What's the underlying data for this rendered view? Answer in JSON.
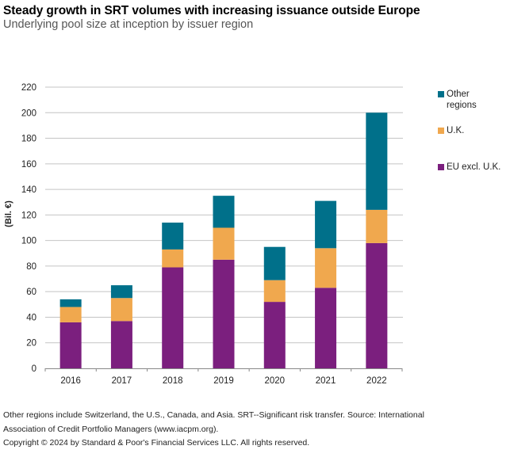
{
  "header": {
    "title": "Steady growth in SRT volumes with increasing issuance outside Europe",
    "subtitle": "Underlying pool size at inception by issuer region"
  },
  "chart_data": {
    "type": "bar",
    "stacked": true,
    "title": "Steady growth in SRT volumes with increasing issuance outside Europe",
    "subtitle": "Underlying pool size at inception by issuer region",
    "xlabel": "",
    "ylabel": "(Bil. €)",
    "ylim": [
      0,
      220
    ],
    "yticks": [
      0,
      20,
      40,
      60,
      80,
      100,
      120,
      140,
      160,
      180,
      200,
      220
    ],
    "grid": true,
    "legend_position": "right",
    "categories": [
      "2016",
      "2017",
      "2018",
      "2019",
      "2020",
      "2021",
      "2022"
    ],
    "series": [
      {
        "name": "EU excl. U.K.",
        "color": "#7B1F7E",
        "values": [
          36,
          37,
          79,
          85,
          52,
          63,
          98
        ]
      },
      {
        "name": "U.K.",
        "color": "#F0A84E",
        "values": [
          12,
          18,
          14,
          25,
          17,
          31,
          26
        ]
      },
      {
        "name": "Other regions",
        "color": "#00708A",
        "values": [
          6,
          10,
          21,
          25,
          26,
          37,
          76
        ]
      }
    ],
    "totals": [
      54,
      65,
      114,
      135,
      95,
      131,
      200
    ]
  },
  "legend": [
    {
      "label": "Other regions",
      "color": "#00708A"
    },
    {
      "label": "U.K.",
      "color": "#F0A84E"
    },
    {
      "label": "EU excl. U.K.",
      "color": "#7B1F7E"
    }
  ],
  "footer": {
    "note_line1": "Other regions include Switzerland, the U.S., Canada, and Asia. SRT--Significant risk transfer. Source: International",
    "note_line2": "Association of Credit Portfolio Managers (www.iacpm.org).",
    "copyright": "Copyright © 2024 by Standard & Poor's Financial Services LLC. All rights reserved."
  }
}
